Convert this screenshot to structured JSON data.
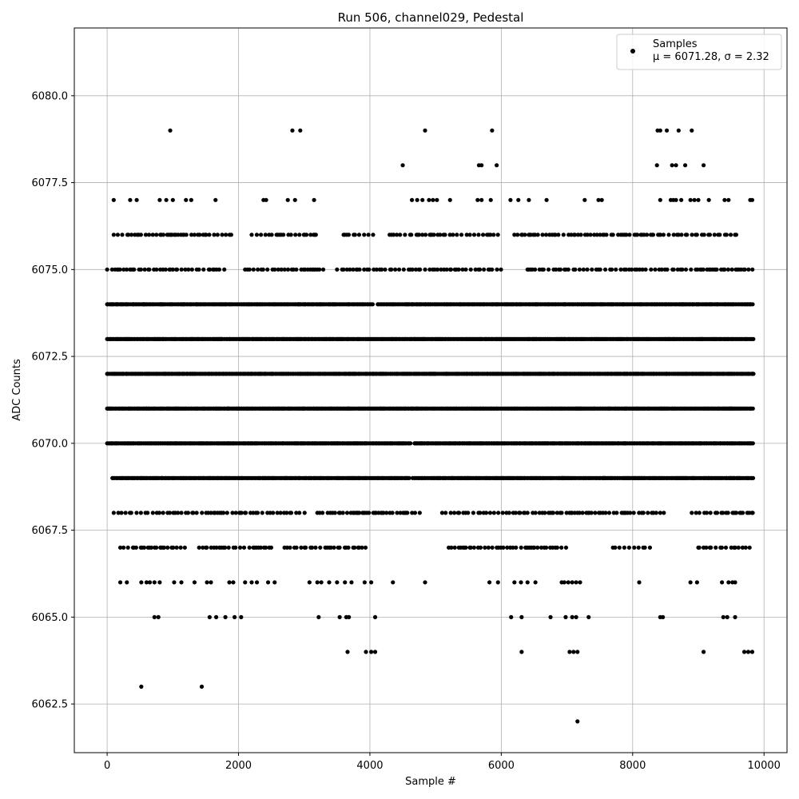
{
  "chart_data": {
    "type": "scatter",
    "title": "Run 506, channel029, Pedestal",
    "xlabel": "Sample #",
    "ylabel": "ADC Counts",
    "xlim": [
      -500,
      10350
    ],
    "ylim": [
      6061.1,
      6081.95
    ],
    "x_ticks": [
      0,
      2000,
      4000,
      6000,
      8000,
      10000
    ],
    "y_ticks": [
      6062.5,
      6065.0,
      6067.5,
      6070.0,
      6072.5,
      6075.0,
      6077.5,
      6080.0
    ],
    "grid": true,
    "legend": {
      "position": "top-right",
      "series_label": "Samples",
      "stats_label": "μ = 6071.28, σ = 2.32"
    },
    "stats": {
      "mean": 6071.28,
      "sigma": 2.32
    },
    "marker_color": "#000000",
    "levels": [
      {
        "y": 6069,
        "ranges": [
          [
            80,
            4600
          ],
          [
            4650,
            9840
          ]
        ]
      },
      {
        "y": 6070,
        "ranges": [
          [
            0,
            4620
          ],
          [
            4680,
            9840
          ]
        ]
      },
      {
        "y": 6071,
        "ranges": [
          [
            0,
            9840
          ]
        ]
      },
      {
        "y": 6072,
        "ranges": [
          [
            0,
            9840
          ]
        ]
      },
      {
        "y": 6073,
        "ranges": [
          [
            0,
            9840
          ]
        ]
      },
      {
        "y": 6074,
        "ranges": [
          [
            0,
            4050
          ],
          [
            4120,
            9840
          ]
        ]
      },
      {
        "y": 6075,
        "ranges": [
          [
            0,
            1800
          ],
          [
            2100,
            3300
          ],
          [
            3500,
            4700
          ],
          [
            4700,
            6000
          ],
          [
            6400,
            9840
          ]
        ]
      },
      {
        "y": 6068,
        "ranges": [
          [
            100,
            3050
          ],
          [
            3200,
            4800
          ],
          [
            5100,
            6400
          ],
          [
            6400,
            8500
          ],
          [
            8900,
            9840
          ]
        ]
      },
      {
        "y": 6076,
        "ranges": [
          [
            100,
            1900
          ],
          [
            2200,
            3200
          ],
          [
            3600,
            4100
          ],
          [
            4300,
            6000
          ],
          [
            6200,
            9600
          ]
        ]
      },
      {
        "y": 6067,
        "ranges": [
          [
            200,
            1200
          ],
          [
            1400,
            2500
          ],
          [
            2700,
            4000
          ],
          [
            5200,
            7000
          ],
          [
            7700,
            8300
          ],
          [
            9000,
            9840
          ]
        ]
      }
    ],
    "sparse_points": [
      [
        960,
        6079
      ],
      [
        2820,
        6079
      ],
      [
        2940,
        6079
      ],
      [
        4840,
        6079
      ],
      [
        5860,
        6079
      ],
      [
        8380,
        6079
      ],
      [
        8420,
        6079
      ],
      [
        8520,
        6079
      ],
      [
        8700,
        6079
      ],
      [
        8900,
        6079
      ],
      [
        4500,
        6078
      ],
      [
        5660,
        6078
      ],
      [
        5700,
        6078
      ],
      [
        5930,
        6078
      ],
      [
        8370,
        6078
      ],
      [
        8600,
        6078
      ],
      [
        8660,
        6078
      ],
      [
        8800,
        6078
      ],
      [
        9080,
        6078
      ],
      [
        100,
        6077
      ],
      [
        350,
        6077
      ],
      [
        450,
        6077
      ],
      [
        800,
        6077
      ],
      [
        900,
        6077
      ],
      [
        1000,
        6077
      ],
      [
        1200,
        6077
      ],
      [
        1280,
        6077
      ],
      [
        1650,
        6077
      ],
      [
        2380,
        6077
      ],
      [
        2420,
        6077
      ],
      [
        2750,
        6077
      ],
      [
        2860,
        6077
      ],
      [
        3150,
        6077
      ],
      [
        4640,
        6077
      ],
      [
        4720,
        6077
      ],
      [
        4800,
        6077
      ],
      [
        4900,
        6077
      ],
      [
        4960,
        6077
      ],
      [
        5020,
        6077
      ],
      [
        5220,
        6077
      ],
      [
        5640,
        6077
      ],
      [
        5700,
        6077
      ],
      [
        5840,
        6077
      ],
      [
        6140,
        6077
      ],
      [
        6260,
        6077
      ],
      [
        6420,
        6077
      ],
      [
        6690,
        6077
      ],
      [
        7270,
        6077
      ],
      [
        7480,
        6077
      ],
      [
        7530,
        6077
      ],
      [
        8420,
        6077
      ],
      [
        8580,
        6077
      ],
      [
        8620,
        6077
      ],
      [
        8660,
        6077
      ],
      [
        8740,
        6077
      ],
      [
        8880,
        6077
      ],
      [
        8940,
        6077
      ],
      [
        9000,
        6077
      ],
      [
        9160,
        6077
      ],
      [
        9400,
        6077
      ],
      [
        9460,
        6077
      ],
      [
        9790,
        6077
      ],
      [
        9820,
        6077
      ],
      [
        200,
        6066
      ],
      [
        300,
        6066
      ],
      [
        520,
        6066
      ],
      [
        600,
        6066
      ],
      [
        650,
        6066
      ],
      [
        720,
        6066
      ],
      [
        800,
        6066
      ],
      [
        1020,
        6066
      ],
      [
        1130,
        6066
      ],
      [
        1330,
        6066
      ],
      [
        1520,
        6066
      ],
      [
        1580,
        6066
      ],
      [
        1860,
        6066
      ],
      [
        1920,
        6066
      ],
      [
        2100,
        6066
      ],
      [
        2200,
        6066
      ],
      [
        2280,
        6066
      ],
      [
        2450,
        6066
      ],
      [
        2550,
        6066
      ],
      [
        3080,
        6066
      ],
      [
        3200,
        6066
      ],
      [
        3260,
        6066
      ],
      [
        3380,
        6066
      ],
      [
        3500,
        6066
      ],
      [
        3620,
        6066
      ],
      [
        3720,
        6066
      ],
      [
        3920,
        6066
      ],
      [
        4020,
        6066
      ],
      [
        4350,
        6066
      ],
      [
        4840,
        6066
      ],
      [
        5820,
        6066
      ],
      [
        5950,
        6066
      ],
      [
        6200,
        6066
      ],
      [
        6300,
        6066
      ],
      [
        6400,
        6066
      ],
      [
        6520,
        6066
      ],
      [
        6920,
        6066
      ],
      [
        6960,
        6066
      ],
      [
        7020,
        6066
      ],
      [
        7080,
        6066
      ],
      [
        7140,
        6066
      ],
      [
        7200,
        6066
      ],
      [
        8100,
        6066
      ],
      [
        8880,
        6066
      ],
      [
        8980,
        6066
      ],
      [
        9360,
        6066
      ],
      [
        9460,
        6066
      ],
      [
        9520,
        6066
      ],
      [
        9560,
        6066
      ],
      [
        720,
        6065
      ],
      [
        780,
        6065
      ],
      [
        1560,
        6065
      ],
      [
        1660,
        6065
      ],
      [
        1800,
        6065
      ],
      [
        1940,
        6065
      ],
      [
        2040,
        6065
      ],
      [
        3220,
        6065
      ],
      [
        3540,
        6065
      ],
      [
        3640,
        6065
      ],
      [
        3680,
        6065
      ],
      [
        4080,
        6065
      ],
      [
        6150,
        6065
      ],
      [
        6310,
        6065
      ],
      [
        6750,
        6065
      ],
      [
        6980,
        6065
      ],
      [
        7080,
        6065
      ],
      [
        7140,
        6065
      ],
      [
        7330,
        6065
      ],
      [
        8420,
        6065
      ],
      [
        8460,
        6065
      ],
      [
        9380,
        6065
      ],
      [
        9440,
        6065
      ],
      [
        9560,
        6065
      ],
      [
        3660,
        6064
      ],
      [
        3940,
        6064
      ],
      [
        4020,
        6064
      ],
      [
        4080,
        6064
      ],
      [
        6310,
        6064
      ],
      [
        7040,
        6064
      ],
      [
        7100,
        6064
      ],
      [
        7160,
        6064
      ],
      [
        9080,
        6064
      ],
      [
        9700,
        6064
      ],
      [
        9760,
        6064
      ],
      [
        9820,
        6064
      ],
      [
        520,
        6063
      ],
      [
        1440,
        6063
      ],
      [
        7160,
        6062
      ]
    ]
  }
}
